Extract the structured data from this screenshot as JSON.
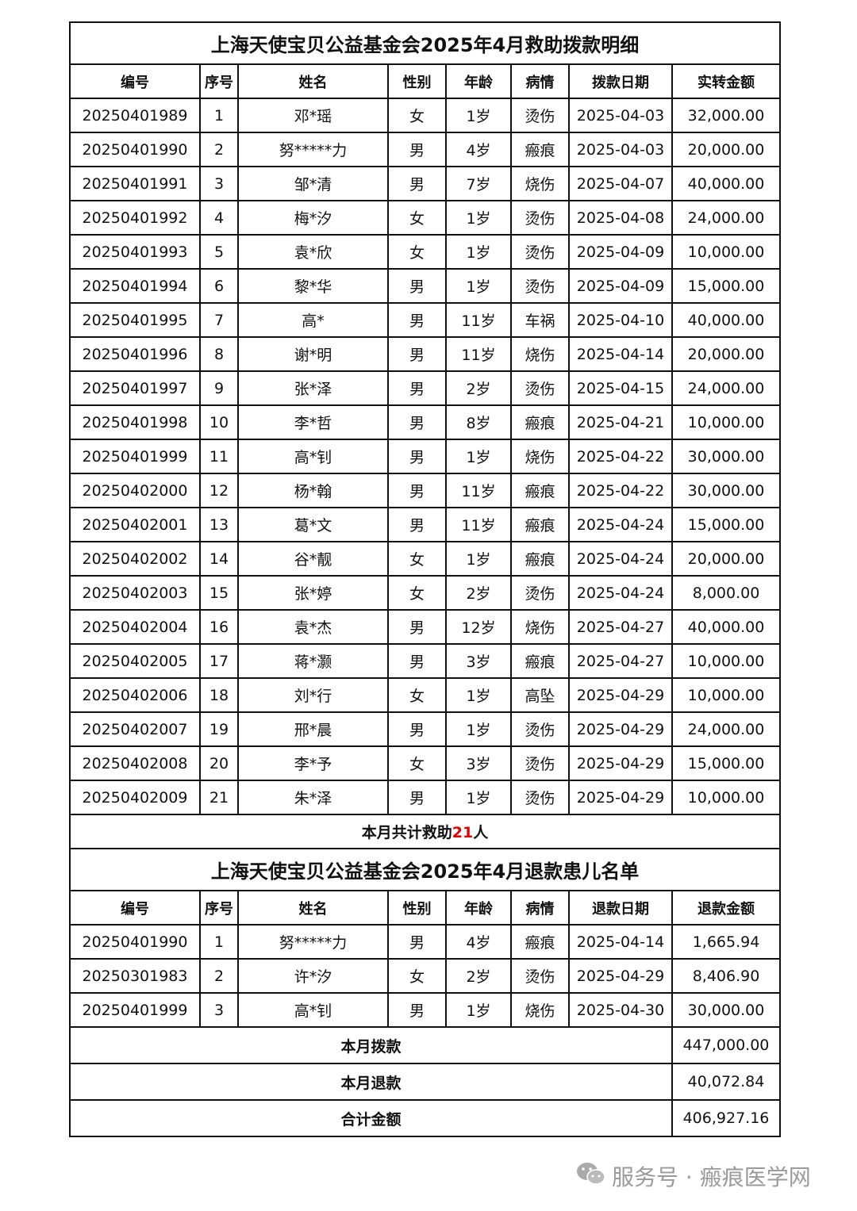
{
  "title1": "上海天使宝贝公益基金会2025年4月救助拨款明细",
  "headers1": [
    "编号",
    "序号",
    "姓名",
    "性别",
    "年龄",
    "病情",
    "拨款日期",
    "实转金额"
  ],
  "rows1": [
    [
      "20250401989",
      "1",
      "邓*瑶",
      "女",
      "1岁",
      "烫伤",
      "2025-04-03",
      "32,000.00"
    ],
    [
      "20250401990",
      "2",
      "努*****力",
      "男",
      "4岁",
      "瘢痕",
      "2025-04-03",
      "20,000.00"
    ],
    [
      "20250401991",
      "3",
      "邹*清",
      "男",
      "7岁",
      "烧伤",
      "2025-04-07",
      "40,000.00"
    ],
    [
      "20250401992",
      "4",
      "梅*汐",
      "女",
      "1岁",
      "烫伤",
      "2025-04-08",
      "24,000.00"
    ],
    [
      "20250401993",
      "5",
      "袁*欣",
      "女",
      "1岁",
      "烫伤",
      "2025-04-09",
      "10,000.00"
    ],
    [
      "20250401994",
      "6",
      "黎*华",
      "男",
      "1岁",
      "烫伤",
      "2025-04-09",
      "15,000.00"
    ],
    [
      "20250401995",
      "7",
      "高*",
      "男",
      "11岁",
      "车祸",
      "2025-04-10",
      "40,000.00"
    ],
    [
      "20250401996",
      "8",
      "谢*明",
      "男",
      "11岁",
      "烧伤",
      "2025-04-14",
      "20,000.00"
    ],
    [
      "20250401997",
      "9",
      "张*泽",
      "男",
      "2岁",
      "烫伤",
      "2025-04-15",
      "24,000.00"
    ],
    [
      "20250401998",
      "10",
      "李*哲",
      "男",
      "8岁",
      "瘢痕",
      "2025-04-21",
      "10,000.00"
    ],
    [
      "20250401999",
      "11",
      "高*钊",
      "男",
      "1岁",
      "烧伤",
      "2025-04-22",
      "30,000.00"
    ],
    [
      "20250402000",
      "12",
      "杨*翰",
      "男",
      "11岁",
      "瘢痕",
      "2025-04-22",
      "30,000.00"
    ],
    [
      "20250402001",
      "13",
      "葛*文",
      "男",
      "11岁",
      "瘢痕",
      "2025-04-24",
      "15,000.00"
    ],
    [
      "20250402002",
      "14",
      "谷*靓",
      "女",
      "1岁",
      "瘢痕",
      "2025-04-24",
      "20,000.00"
    ],
    [
      "20250402003",
      "15",
      "张*婷",
      "女",
      "2岁",
      "烫伤",
      "2025-04-24",
      "8,000.00"
    ],
    [
      "20250402004",
      "16",
      "袁*杰",
      "男",
      "12岁",
      "烧伤",
      "2025-04-27",
      "40,000.00"
    ],
    [
      "20250402005",
      "17",
      "蒋*灏",
      "男",
      "3岁",
      "瘢痕",
      "2025-04-27",
      "10,000.00"
    ],
    [
      "20250402006",
      "18",
      "刘*行",
      "女",
      "1岁",
      "高坠",
      "2025-04-29",
      "10,000.00"
    ],
    [
      "20250402007",
      "19",
      "邢*晨",
      "男",
      "1岁",
      "烫伤",
      "2025-04-29",
      "24,000.00"
    ],
    [
      "20250402008",
      "20",
      "李*予",
      "女",
      "3岁",
      "烫伤",
      "2025-04-29",
      "15,000.00"
    ],
    [
      "20250402009",
      "21",
      "朱*泽",
      "男",
      "1岁",
      "烫伤",
      "2025-04-29",
      "10,000.00"
    ]
  ],
  "summary": {
    "prefix": "本月共计救助",
    "count": "21",
    "suffix": "人",
    "accent": "#e00000"
  },
  "title2": "上海天使宝贝公益基金会2025年4月退款患儿名单",
  "headers2": [
    "编号",
    "序号",
    "姓名",
    "性别",
    "年龄",
    "病情",
    "退款日期",
    "退款金额"
  ],
  "rows2": [
    [
      "20250401990",
      "1",
      "努*****力",
      "男",
      "4岁",
      "瘢痕",
      "2025-04-14",
      "1,665.94"
    ],
    [
      "20250301983",
      "2",
      "许*汐",
      "女",
      "2岁",
      "烫伤",
      "2025-04-29",
      "8,406.90"
    ],
    [
      "20250401999",
      "3",
      "高*钊",
      "男",
      "1岁",
      "烧伤",
      "2025-04-30",
      "30,000.00"
    ]
  ],
  "totals": [
    {
      "label": "本月拨款",
      "value": "447,000.00"
    },
    {
      "label": "本月退款",
      "value": "40,072.84"
    },
    {
      "label": "合计金额",
      "value": "406,927.16"
    }
  ],
  "watermark": {
    "icon": "wechat-icon",
    "text": "服务号 · 瘢痕医学网"
  }
}
